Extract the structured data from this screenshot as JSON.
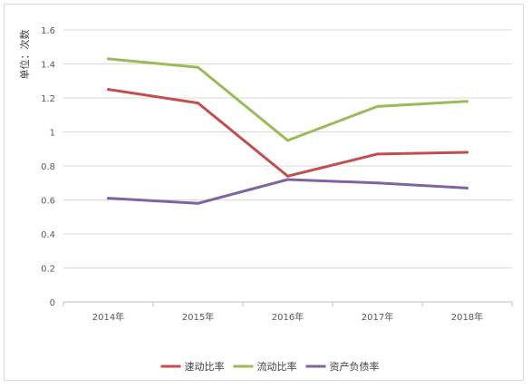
{
  "chart_data": {
    "type": "line",
    "title": "",
    "xlabel": "",
    "ylabel": "单位：次数",
    "categories": [
      "2014年",
      "2015年",
      "2016年",
      "2017年",
      "2018年"
    ],
    "ylim": [
      0,
      1.6
    ],
    "yticks": [
      "0",
      "0.2",
      "0.4",
      "0.6",
      "0.8",
      "1",
      "1.2",
      "1.4",
      "1.6"
    ],
    "grid": true,
    "legend_position": "bottom",
    "series": [
      {
        "name": "速动比率",
        "color": "#c0504d",
        "values": [
          1.25,
          1.17,
          0.74,
          0.87,
          0.88
        ]
      },
      {
        "name": "流动比率",
        "color": "#9bbb59",
        "values": [
          1.43,
          1.38,
          0.95,
          1.15,
          1.18
        ]
      },
      {
        "name": "资产负债率",
        "color": "#8064a2",
        "values": [
          0.61,
          0.58,
          0.72,
          0.7,
          0.67
        ]
      }
    ]
  }
}
